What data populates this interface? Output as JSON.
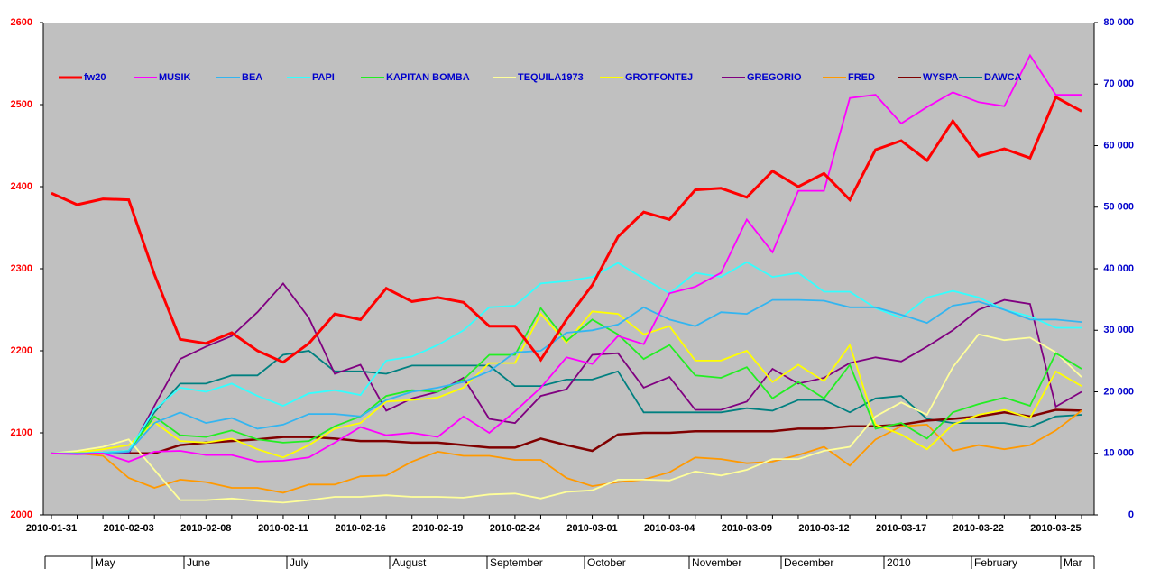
{
  "chart_data": {
    "type": "line",
    "categories": [
      "2010-01-31",
      null,
      null,
      "2010-02-03",
      null,
      null,
      "2010-02-08",
      null,
      null,
      "2010-02-11",
      null,
      null,
      "2010-02-16",
      null,
      null,
      "2010-02-19",
      null,
      null,
      "2010-02-24",
      null,
      null,
      "2010-03-01",
      null,
      null,
      "2010-03-04",
      null,
      null,
      "2010-03-09",
      null,
      null,
      "2010-03-12",
      null,
      null,
      "2010-03-17",
      null,
      null,
      "2010-03-22",
      null,
      null,
      "2010-03-25",
      null
    ],
    "x2_labels": [
      "May",
      "June",
      "July",
      "August",
      "September",
      "October",
      "November",
      "December",
      "2010",
      "February",
      "Mar"
    ],
    "ylim": [
      2000,
      2600
    ],
    "yticks": [
      2000,
      2100,
      2200,
      2300,
      2400,
      2500,
      2600
    ],
    "y2lim": [
      0,
      80000
    ],
    "y2ticks": [
      {
        "value": 0,
        "label": "0"
      },
      {
        "value": 10000,
        "label": "10 000"
      },
      {
        "value": 20000,
        "label": "20 000"
      },
      {
        "value": 30000,
        "label": "30 000"
      },
      {
        "value": 40000,
        "label": "40 000"
      },
      {
        "value": 50000,
        "label": "50 000"
      },
      {
        "value": 60000,
        "label": "60 000"
      },
      {
        "value": 70000,
        "label": "70 000"
      },
      {
        "value": 80000,
        "label": "80 000"
      }
    ],
    "series": [
      {
        "name": "fw20",
        "color": "#ff0000",
        "values": [
          2392,
          2378,
          2385,
          2384,
          2293,
          2214,
          2209,
          2222,
          2200,
          2186,
          2209,
          2245,
          2238,
          2276,
          2260,
          2265,
          2259,
          2230,
          2230,
          2189,
          2238,
          2280,
          2339,
          2369,
          2360,
          2396,
          2398,
          2387,
          2419,
          2400,
          2416,
          2384,
          2445,
          2456,
          2432,
          2480,
          2437,
          2446,
          2435,
          2509,
          2492
        ]
      },
      {
        "name": "MUSIK",
        "color": "#ff00ff",
        "values": [
          2075,
          2074,
          2075,
          2065,
          2077,
          2078,
          2073,
          2073,
          2065,
          2066,
          2070,
          2088,
          2107,
          2097,
          2100,
          2095,
          2120,
          2100,
          2126,
          2155,
          2192,
          2184,
          2218,
          2208,
          2270,
          2278,
          2295,
          2360,
          2320,
          2395,
          2395,
          2508,
          2512,
          2477,
          2497,
          2515,
          2503,
          2498,
          2560,
          2512,
          2512
        ]
      },
      {
        "name": "BEA",
        "color": "#33b5f0",
        "values": [
          2075,
          2075,
          2075,
          2077,
          2112,
          2125,
          2112,
          2118,
          2105,
          2110,
          2123,
          2123,
          2120,
          2140,
          2150,
          2155,
          2162,
          2175,
          2198,
          2200,
          2222,
          2225,
          2232,
          2253,
          2238,
          2230,
          2247,
          2245,
          2262,
          2262,
          2261,
          2253,
          2253,
          2244,
          2234,
          2255,
          2260,
          2250,
          2238,
          2238,
          2235
        ]
      },
      {
        "name": "PAPI",
        "color": "#33ffff",
        "values": [
          2075,
          2075,
          2076,
          2078,
          2128,
          2155,
          2150,
          2160,
          2145,
          2133,
          2148,
          2152,
          2146,
          2188,
          2193,
          2207,
          2225,
          2253,
          2255,
          2282,
          2285,
          2290,
          2307,
          2288,
          2270,
          2295,
          2290,
          2308,
          2290,
          2295,
          2272,
          2272,
          2252,
          2240,
          2265,
          2273,
          2265,
          2250,
          2242,
          2228,
          2228
        ]
      },
      {
        "name": "KAPITAN BOMBA",
        "color": "#22ee22",
        "values": [
          2075,
          2075,
          2076,
          2078,
          2120,
          2097,
          2095,
          2103,
          2092,
          2088,
          2090,
          2108,
          2120,
          2145,
          2152,
          2150,
          2165,
          2195,
          2195,
          2252,
          2212,
          2238,
          2220,
          2190,
          2207,
          2170,
          2167,
          2180,
          2142,
          2162,
          2142,
          2183,
          2105,
          2112,
          2093,
          2125,
          2135,
          2143,
          2133,
          2197,
          2178
        ]
      },
      {
        "name": "TEQUILA1973",
        "color": "#ffff99",
        "values": [
          2075,
          2078,
          2083,
          2092,
          2055,
          2018,
          2018,
          2020,
          2017,
          2015,
          2018,
          2022,
          2022,
          2024,
          2022,
          2022,
          2021,
          2025,
          2026,
          2020,
          2028,
          2030,
          2043,
          2043,
          2042,
          2053,
          2048,
          2055,
          2068,
          2068,
          2078,
          2083,
          2120,
          2137,
          2122,
          2180,
          2220,
          2213,
          2216,
          2198,
          2168
        ]
      },
      {
        "name": "GROTFONTEJ",
        "color": "#ffff00",
        "values": [
          2075,
          2076,
          2080,
          2085,
          2113,
          2090,
          2088,
          2093,
          2080,
          2070,
          2085,
          2105,
          2112,
          2138,
          2140,
          2143,
          2155,
          2185,
          2185,
          2245,
          2210,
          2248,
          2245,
          2220,
          2230,
          2188,
          2188,
          2200,
          2162,
          2183,
          2163,
          2207,
          2110,
          2098,
          2080,
          2110,
          2122,
          2128,
          2118,
          2175,
          2157
        ]
      },
      {
        "name": "GREGORIO",
        "color": "#800080",
        "values": [
          2075,
          2075,
          2075,
          2075,
          2133,
          2190,
          2205,
          2218,
          2247,
          2282,
          2240,
          2172,
          2183,
          2127,
          2142,
          2150,
          2167,
          2117,
          2112,
          2145,
          2153,
          2195,
          2197,
          2155,
          2168,
          2128,
          2128,
          2138,
          2178,
          2160,
          2167,
          2185,
          2192,
          2187,
          2205,
          2225,
          2250,
          2262,
          2257,
          2132,
          2150
        ]
      },
      {
        "name": "FRED",
        "color": "#ff9900",
        "values": [
          2075,
          2075,
          2072,
          2045,
          2033,
          2043,
          2040,
          2033,
          2033,
          2027,
          2037,
          2037,
          2047,
          2048,
          2065,
          2077,
          2072,
          2072,
          2067,
          2067,
          2045,
          2035,
          2040,
          2043,
          2052,
          2070,
          2068,
          2063,
          2065,
          2073,
          2083,
          2060,
          2092,
          2108,
          2110,
          2078,
          2085,
          2080,
          2085,
          2103,
          2127
        ]
      },
      {
        "name": "WYSPA",
        "color": "#800000",
        "values": [
          2075,
          2075,
          2075,
          2075,
          2075,
          2085,
          2088,
          2090,
          2092,
          2095,
          2095,
          2093,
          2090,
          2090,
          2088,
          2088,
          2085,
          2082,
          2082,
          2093,
          2085,
          2078,
          2098,
          2100,
          2100,
          2102,
          2102,
          2102,
          2102,
          2105,
          2105,
          2108,
          2108,
          2110,
          2115,
          2117,
          2120,
          2125,
          2120,
          2128,
          2127
        ]
      },
      {
        "name": "DAWCA",
        "color": "#008080",
        "values": [
          2075,
          2075,
          2075,
          2078,
          2125,
          2160,
          2160,
          2170,
          2170,
          2195,
          2200,
          2175,
          2175,
          2172,
          2182,
          2182,
          2182,
          2182,
          2157,
          2157,
          2165,
          2165,
          2175,
          2125,
          2125,
          2125,
          2125,
          2130,
          2127,
          2140,
          2140,
          2125,
          2142,
          2145,
          2117,
          2112,
          2112,
          2112,
          2107,
          2120,
          2122
        ]
      }
    ]
  }
}
